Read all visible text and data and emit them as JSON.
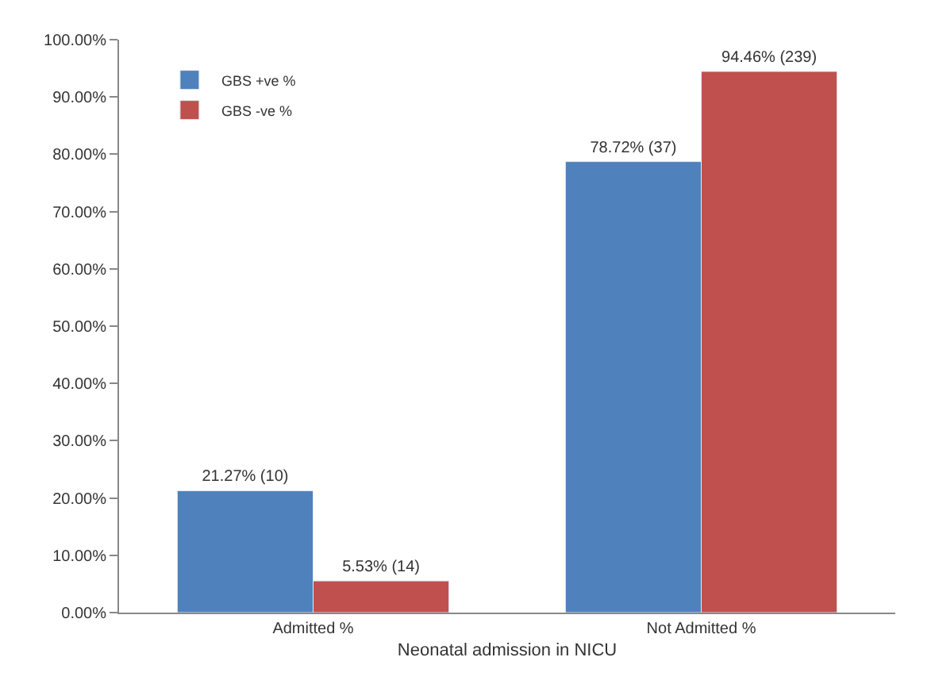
{
  "chart_data": {
    "type": "bar",
    "xlabel": "Neonatal admission in NICU",
    "categories": [
      "Admitted %",
      "Not Admitted %"
    ],
    "series": [
      {
        "name": "GBS +ve %",
        "color": "#4f81bd",
        "values": [
          21.27,
          78.72
        ],
        "value_labels": [
          "21.27% (10)",
          "78.72% (37)"
        ]
      },
      {
        "name": "GBS -ve %",
        "color": "#c0504d",
        "values": [
          5.53,
          94.46
        ],
        "value_labels": [
          "5.53% (14)",
          "94.46% (239)"
        ]
      }
    ],
    "ylim": [
      0,
      100
    ],
    "yticks": [
      {
        "value": 0,
        "label": "0.00%"
      },
      {
        "value": 10,
        "label": "10.00%"
      },
      {
        "value": 20,
        "label": "20.00%"
      },
      {
        "value": 30,
        "label": "30.00%"
      },
      {
        "value": 40,
        "label": "40.00%"
      },
      {
        "value": 50,
        "label": "50.00%"
      },
      {
        "value": 60,
        "label": "60.00%"
      },
      {
        "value": 70,
        "label": "70.00%"
      },
      {
        "value": 80,
        "label": "80.00%"
      },
      {
        "value": 90,
        "label": "90.00%"
      },
      {
        "value": 100,
        "label": "100.00%"
      }
    ],
    "legend": "top left"
  }
}
